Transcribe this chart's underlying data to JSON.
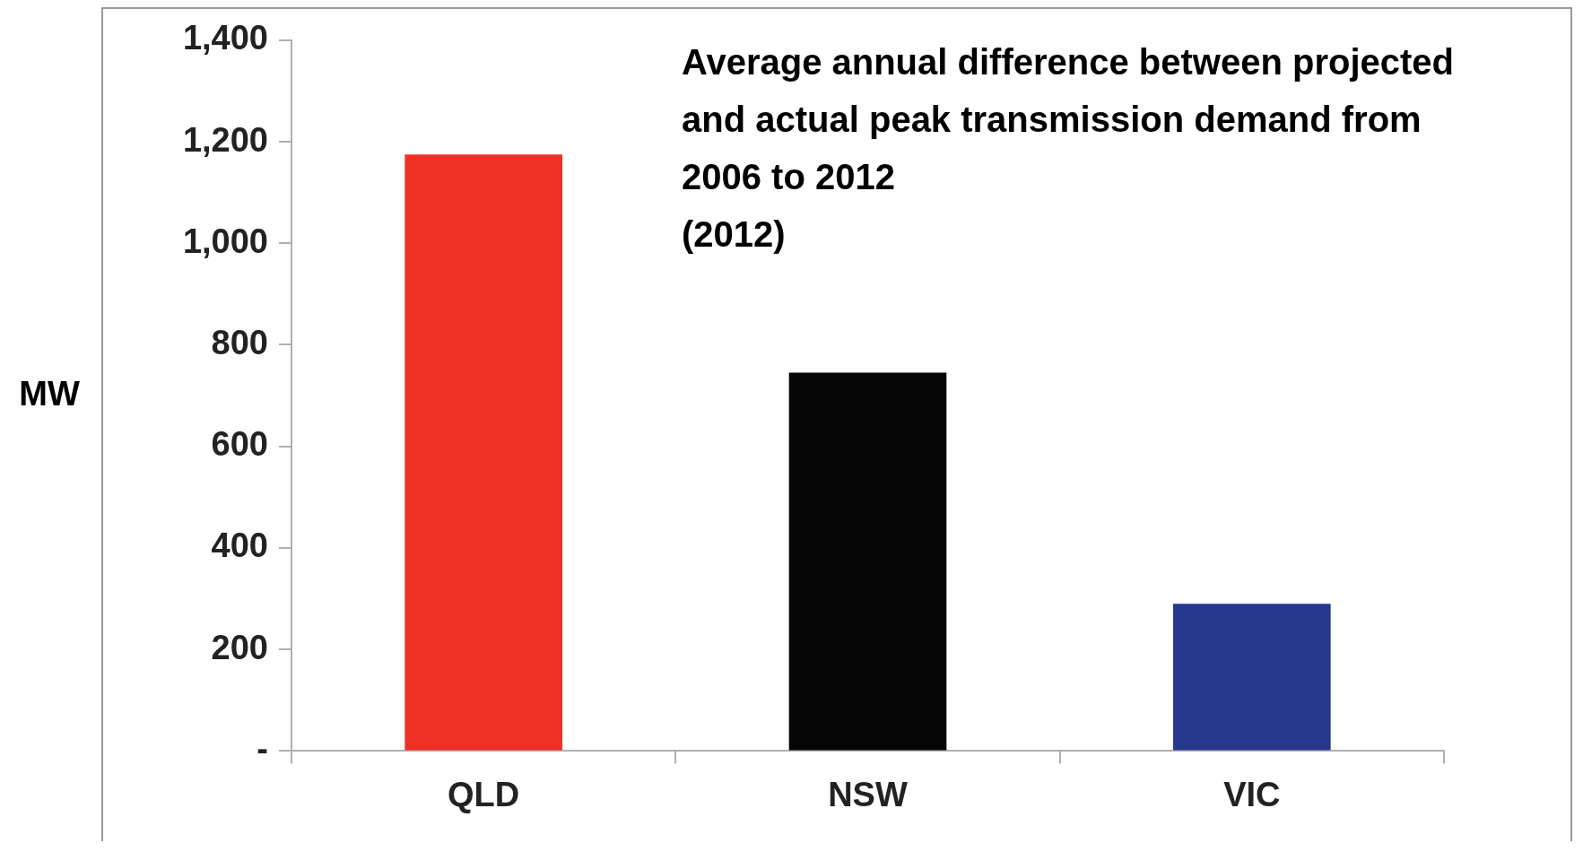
{
  "chart_data": {
    "type": "bar",
    "title": "Average annual difference between projected and actual peak transmission demand from 2006 to 2012",
    "ylabel": "MW",
    "annotations": [
      "(2012)"
    ],
    "categories": [
      "QLD",
      "NSW",
      "VIC"
    ],
    "values": [
      1175,
      745,
      290
    ],
    "colors": [
      "#ee3124",
      "#050505",
      "#27388f"
    ],
    "ylim": [
      0,
      1400
    ],
    "yticks": [
      {
        "value": 0,
        "label": "-"
      },
      {
        "value": 200,
        "label": "200"
      },
      {
        "value": 400,
        "label": "400"
      },
      {
        "value": 600,
        "label": "600"
      },
      {
        "value": 800,
        "label": "800"
      },
      {
        "value": 1000,
        "label": "1,000"
      },
      {
        "value": 1200,
        "label": "1,200"
      },
      {
        "value": 1400,
        "label": "1,400"
      }
    ],
    "grid": false,
    "legend": false
  }
}
